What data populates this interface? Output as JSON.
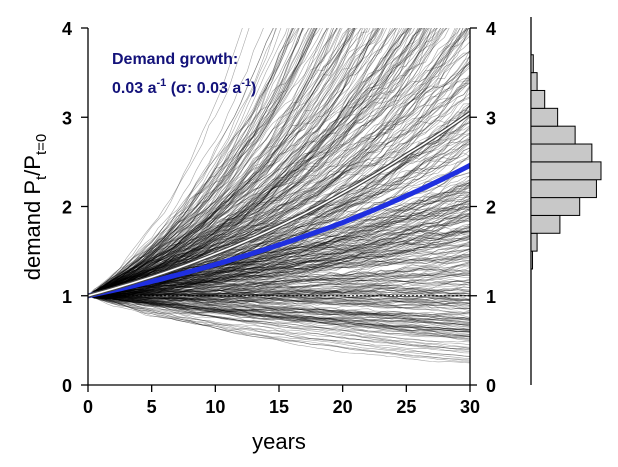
{
  "chart_data": {
    "type": "line",
    "xlabel": "years",
    "ylabel": {
      "main": "demand P",
      "sub1": "t",
      "slash": "/P",
      "sub2": "t=0"
    },
    "annotation": {
      "line1": "Demand growth:",
      "line2_a": "0.03 a",
      "line2_exp1": "-1",
      "line2_b": " (σ: 0.03 a",
      "line2_exp2": "-1",
      "line2_c": ")"
    },
    "xlim": [
      0,
      30
    ],
    "ylim": [
      0,
      4
    ],
    "x_ticks": [
      0,
      5,
      10,
      15,
      20,
      25,
      30
    ],
    "y_ticks": [
      0,
      1,
      2,
      3,
      4
    ],
    "x_tick_labels": [
      "0",
      "5",
      "10",
      "15",
      "20",
      "25",
      "30"
    ],
    "y_tick_labels": [
      "0",
      "1",
      "2",
      "3",
      "4"
    ],
    "y_tick_labels_right": [
      "0",
      "1",
      "2",
      "3",
      "4"
    ],
    "reference_line": {
      "y": 1,
      "style": "dotted"
    },
    "simulation": {
      "n_paths": 500,
      "mean_growth": 0.03,
      "sigma": 0.03,
      "color": "#000000"
    },
    "series": [
      {
        "style": "mean",
        "color": "#1f2fe0",
        "x": [
          0,
          5,
          10,
          15,
          20,
          25,
          30
        ],
        "y": [
          1.0,
          1.16,
          1.35,
          1.57,
          1.82,
          2.12,
          2.46
        ]
      },
      {
        "style": "upper-percentile",
        "color": "#ffffff",
        "x": [
          0,
          5,
          10,
          15,
          20,
          25,
          30
        ],
        "y": [
          1.0,
          1.21,
          1.47,
          1.78,
          2.15,
          2.58,
          3.05
        ]
      }
    ],
    "histogram": {
      "orientation": "horizontal",
      "bin_edges": [
        1.3,
        1.5,
        1.7,
        1.9,
        2.1,
        2.3,
        2.5,
        2.7,
        2.9,
        3.1,
        3.3,
        3.5,
        3.7
      ],
      "counts": [
        2,
        8,
        38,
        64,
        86,
        92,
        80,
        58,
        35,
        18,
        8,
        3
      ],
      "color": "#c8c8c8"
    }
  }
}
